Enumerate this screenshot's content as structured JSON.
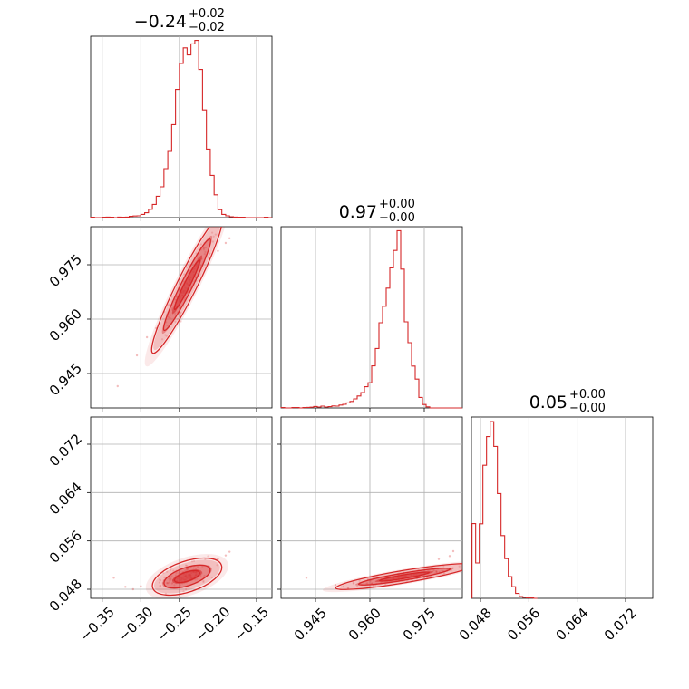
{
  "chart_data": {
    "type": "corner",
    "color": "#d62728",
    "grid": true,
    "parameters": [
      {
        "title": {
          "value": "−0.24",
          "plus": "+0.02",
          "minus": "−0.02"
        },
        "range": [
          -0.365,
          -0.13
        ],
        "ticks": [
          -0.35,
          -0.3,
          -0.25,
          -0.2,
          -0.15
        ],
        "tick_labels": [
          "−0.35",
          "−0.30",
          "−0.25",
          "−0.20",
          "−0.15"
        ]
      },
      {
        "title": {
          "value": "0.97",
          "plus": "+0.00",
          "minus": "−0.00"
        },
        "range": [
          0.9355,
          0.9855
        ],
        "ticks": [
          0.945,
          0.96,
          0.975
        ],
        "tick_labels": [
          "0.945",
          "0.960",
          "0.975"
        ]
      },
      {
        "title": {
          "value": "0.05",
          "plus": "+0.00",
          "minus": "−0.00"
        },
        "range": [
          0.0465,
          0.0765
        ],
        "ticks": [
          0.048,
          0.056,
          0.064,
          0.072
        ],
        "tick_labels": [
          "0.048",
          "0.056",
          "0.064",
          "0.072"
        ]
      }
    ],
    "histograms": [
      {
        "bin_width": 0.005,
        "bins": [
          [
            -0.365,
            0.002
          ],
          [
            -0.36,
            0.0
          ],
          [
            -0.355,
            0.0
          ],
          [
            -0.35,
            0.002
          ],
          [
            -0.345,
            0.003
          ],
          [
            -0.34,
            0.002
          ],
          [
            -0.335,
            0.0
          ],
          [
            -0.33,
            0.003
          ],
          [
            -0.325,
            0.002
          ],
          [
            -0.32,
            0.003
          ],
          [
            -0.315,
            0.007
          ],
          [
            -0.31,
            0.009
          ],
          [
            -0.305,
            0.01
          ],
          [
            -0.3,
            0.018
          ],
          [
            -0.295,
            0.027
          ],
          [
            -0.29,
            0.046
          ],
          [
            -0.285,
            0.073
          ],
          [
            -0.28,
            0.118
          ],
          [
            -0.275,
            0.17
          ],
          [
            -0.27,
            0.27
          ],
          [
            -0.265,
            0.365
          ],
          [
            -0.26,
            0.513
          ],
          [
            -0.255,
            0.707
          ],
          [
            -0.25,
            0.85
          ],
          [
            -0.245,
            0.936
          ],
          [
            -0.24,
            0.897
          ],
          [
            -0.235,
            0.958
          ],
          [
            -0.23,
            0.977
          ],
          [
            -0.225,
            0.817
          ],
          [
            -0.22,
            0.594
          ],
          [
            -0.215,
            0.378
          ],
          [
            -0.21,
            0.233
          ],
          [
            -0.205,
            0.126
          ],
          [
            -0.2,
            0.044
          ],
          [
            -0.195,
            0.018
          ],
          [
            -0.19,
            0.01
          ],
          [
            -0.185,
            0.005
          ],
          [
            -0.18,
            0.003
          ],
          [
            -0.175,
            0.002
          ],
          [
            -0.17,
            0.002
          ],
          [
            -0.165,
            0.0
          ],
          [
            -0.16,
            0.0
          ],
          [
            -0.155,
            0.0
          ],
          [
            -0.15,
            0.0
          ],
          [
            -0.145,
            0.0
          ],
          [
            -0.14,
            0.002
          ],
          [
            -0.135,
            0.0
          ]
        ]
      },
      {
        "bin_width": 0.001,
        "bins": [
          [
            0.9355,
            0.002
          ],
          [
            0.9365,
            0.0
          ],
          [
            0.9375,
            0.0
          ],
          [
            0.9385,
            0.002
          ],
          [
            0.9395,
            0.002
          ],
          [
            0.9405,
            0.0
          ],
          [
            0.9415,
            0.002
          ],
          [
            0.9425,
            0.003
          ],
          [
            0.9435,
            0.004
          ],
          [
            0.9445,
            0.008
          ],
          [
            0.9455,
            0.005
          ],
          [
            0.9465,
            0.01
          ],
          [
            0.9475,
            0.005
          ],
          [
            0.9485,
            0.007
          ],
          [
            0.9495,
            0.011
          ],
          [
            0.9505,
            0.01
          ],
          [
            0.9515,
            0.016
          ],
          [
            0.9525,
            0.02
          ],
          [
            0.9535,
            0.028
          ],
          [
            0.9545,
            0.036
          ],
          [
            0.9555,
            0.05
          ],
          [
            0.9565,
            0.066
          ],
          [
            0.9575,
            0.085
          ],
          [
            0.9585,
            0.117
          ],
          [
            0.9595,
            0.139
          ],
          [
            0.9605,
            0.232
          ],
          [
            0.9615,
            0.328
          ],
          [
            0.9625,
            0.47
          ],
          [
            0.9635,
            0.561
          ],
          [
            0.9645,
            0.661
          ],
          [
            0.9655,
            0.773
          ],
          [
            0.9675,
            0.978
          ],
          [
            0.9665,
            0.869
          ],
          [
            0.9685,
            0.766
          ],
          [
            0.9695,
            0.475
          ],
          [
            0.9705,
            0.36
          ],
          [
            0.9715,
            0.231
          ],
          [
            0.9725,
            0.159
          ],
          [
            0.9735,
            0.058
          ],
          [
            0.9745,
            0.019
          ],
          [
            0.9755,
            0.006
          ],
          [
            0.9765,
            0.0
          ],
          [
            0.9775,
            0.0
          ],
          [
            0.9785,
            0.0
          ],
          [
            0.9795,
            0.0
          ],
          [
            0.9805,
            0.0
          ],
          [
            0.9815,
            0.0
          ],
          [
            0.9825,
            0.0
          ],
          [
            0.9835,
            0.0
          ],
          [
            0.9845,
            0.0
          ]
        ]
      },
      {
        "bin_width": 0.0006,
        "bins": [
          [
            0.0466,
            0.412
          ],
          [
            0.0472,
            0.195
          ],
          [
            0.0478,
            0.411
          ],
          [
            0.0484,
            0.734
          ],
          [
            0.049,
            0.892
          ],
          [
            0.0496,
            0.975
          ],
          [
            0.0502,
            0.838
          ],
          [
            0.0508,
            0.578
          ],
          [
            0.0514,
            0.346
          ],
          [
            0.052,
            0.219
          ],
          [
            0.0526,
            0.12
          ],
          [
            0.0532,
            0.064
          ],
          [
            0.0538,
            0.027
          ],
          [
            0.0544,
            0.01
          ],
          [
            0.055,
            0.005
          ],
          [
            0.0556,
            0.003
          ],
          [
            0.0562,
            0.002
          ],
          [
            0.0568,
            0.0
          ]
        ]
      }
    ],
    "pairs": [
      {
        "x": 0,
        "y": 1,
        "center": [
          -0.24,
          0.9695
        ],
        "direction": [
          0.0424,
          0.018
        ],
        "ctr_width": 0.0016,
        "tail_points": [
          [
            -0.33,
            0.9415
          ],
          [
            -0.305,
            0.95
          ],
          [
            -0.292,
            0.955
          ],
          [
            -0.28,
            0.9575
          ],
          [
            -0.27,
            0.962
          ],
          [
            -0.2,
            0.9788
          ],
          [
            -0.19,
            0.981
          ],
          [
            -0.185,
            0.9823
          ]
        ]
      },
      {
        "x": 0,
        "y": 2,
        "center": [
          -0.24,
          0.0501
        ],
        "direction": [
          0.0424,
          0.0018
        ],
        "ctr_width": 0.0015,
        "tail_points": [
          [
            -0.335,
            0.0499
          ],
          [
            -0.32,
            0.0484
          ],
          [
            -0.31,
            0.048
          ],
          [
            -0.3,
            0.0485
          ],
          [
            -0.2,
            0.053
          ],
          [
            -0.19,
            0.0536
          ],
          [
            -0.185,
            0.0542
          ]
        ]
      },
      {
        "x": 1,
        "y": 2,
        "center": [
          0.9695,
          0.0501
        ],
        "direction": [
          0.018,
          0.0018
        ],
        "ctr_width": 0.0006,
        "tail_points": [
          [
            0.9425,
            0.0499
          ],
          [
            0.9505,
            0.0487
          ],
          [
            0.954,
            0.0482
          ],
          [
            0.9555,
            0.049
          ],
          [
            0.979,
            0.053
          ],
          [
            0.982,
            0.0535
          ],
          [
            0.983,
            0.0543
          ]
        ]
      }
    ]
  }
}
